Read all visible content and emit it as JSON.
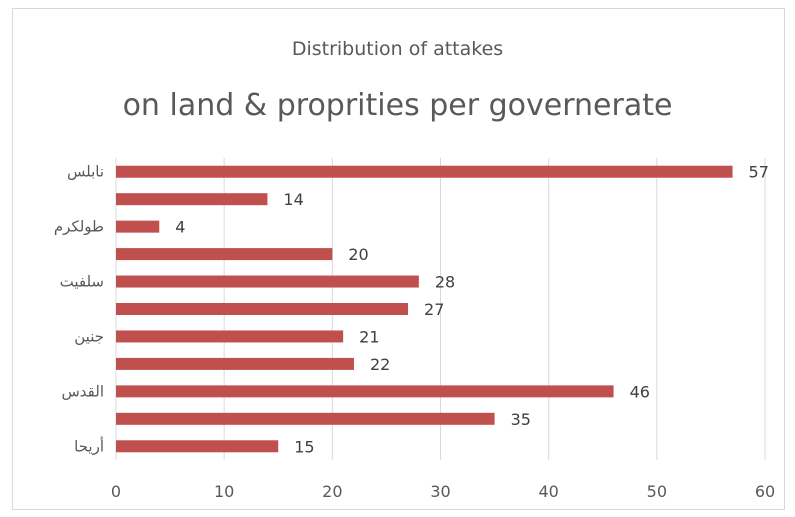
{
  "title": "Distribution of attakes",
  "subtitle": "on land & proprities per governerate",
  "chart_data": {
    "type": "bar",
    "orientation": "horizontal",
    "title": "Distribution of attakes",
    "subtitle": "on land & proprities per governerate",
    "categories": [
      "نابلس",
      "",
      "طولكرم",
      "",
      "سلفيت",
      "",
      "جنين",
      "",
      "القدس",
      "",
      "أريحا"
    ],
    "values": [
      57,
      14,
      4,
      20,
      28,
      27,
      21,
      22,
      46,
      35,
      15
    ],
    "xlim": [
      0,
      60
    ],
    "xticks": [
      0,
      10,
      20,
      30,
      40,
      50,
      60
    ],
    "grid": true,
    "bar_color": "#c0504d",
    "data_labels": true
  }
}
